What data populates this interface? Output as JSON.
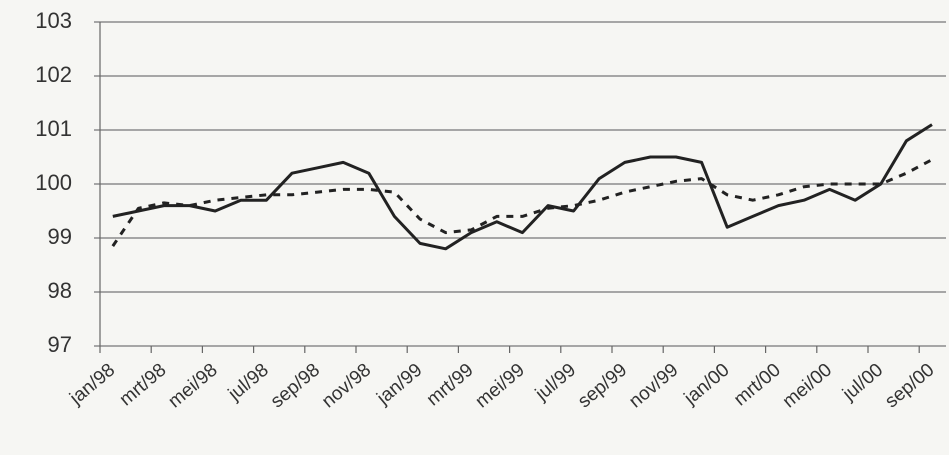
{
  "chart_data": {
    "type": "line",
    "categories": [
      "jan/98",
      null,
      "mrt/98",
      null,
      "mei/98",
      null,
      "jul/98",
      null,
      "sep/98",
      null,
      "nov/98",
      null,
      "jan/99",
      null,
      "mrt/99",
      null,
      "mei/99",
      null,
      "jul/99",
      null,
      "sep/99",
      null,
      "nov/99",
      null,
      "jan/00",
      null,
      "mrt/00",
      null,
      "mei/00",
      null,
      "jul/00",
      null,
      "sep/00"
    ],
    "series": [
      {
        "color": "#222222",
        "style": "solid",
        "values": [
          99.4,
          99.5,
          99.6,
          99.6,
          99.5,
          99.7,
          99.7,
          100.2,
          100.3,
          100.4,
          100.2,
          99.4,
          98.9,
          98.8,
          99.1,
          99.3,
          99.1,
          99.6,
          99.5,
          100.1,
          100.4,
          100.5,
          100.5,
          100.4,
          99.2,
          99.4,
          99.6,
          99.7,
          99.9,
          99.7,
          100.0,
          100.8,
          101.1
        ]
      },
      {
        "color": "#222222",
        "style": "dashed",
        "values": [
          98.85,
          99.55,
          99.65,
          99.6,
          99.7,
          99.75,
          99.8,
          99.8,
          99.85,
          99.9,
          99.9,
          99.85,
          99.35,
          99.1,
          99.15,
          99.4,
          99.4,
          99.55,
          99.6,
          99.7,
          99.85,
          99.95,
          100.05,
          100.1,
          99.8,
          99.7,
          99.8,
          99.95,
          100.0,
          100.0,
          100.0,
          100.2,
          100.45
        ]
      }
    ],
    "ylim": [
      97,
      103
    ],
    "yticks": [
      97,
      98,
      99,
      100,
      101,
      102,
      103
    ],
    "grid": true
  }
}
